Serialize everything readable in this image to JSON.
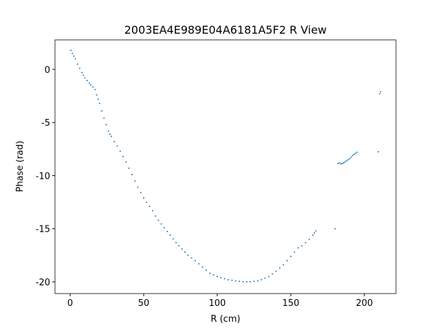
{
  "chart_data": {
    "type": "scatter",
    "title": "2003EA4E989E04A6181A5F2 R View",
    "xlabel": "R (cm)",
    "ylabel": "Phase (rad)",
    "color": "#1f77b4",
    "x": [
      0.5,
      1.5,
      2.5,
      3.5,
      5,
      6.5,
      8,
      9,
      10,
      11.5,
      13,
      14,
      15.5,
      17,
      18,
      19,
      20,
      21.5,
      23,
      24.5,
      26,
      27,
      28,
      30,
      32,
      34,
      36,
      38,
      40,
      42,
      44,
      46,
      48,
      50,
      52,
      54,
      56,
      58,
      60,
      62,
      64,
      66,
      68,
      70,
      72,
      74,
      76,
      78,
      80,
      82.5,
      85,
      87.5,
      90,
      92.5,
      95,
      97.5,
      100,
      102.5,
      105,
      107.5,
      110,
      112.5,
      115,
      117.5,
      120,
      122.5,
      125,
      127.5,
      130,
      132.5,
      135,
      137.5,
      140,
      142.5,
      145,
      147.5,
      150,
      152.5,
      155,
      157.5,
      160,
      162.5,
      165,
      166,
      167,
      180,
      182,
      183,
      184,
      185,
      186,
      187,
      188,
      189,
      190,
      191,
      192,
      193,
      194,
      195,
      209.5,
      210.5,
      211
    ],
    "values": [
      1.8,
      1.5,
      1.25,
      1.0,
      0.5,
      0.1,
      -0.3,
      -0.55,
      -0.8,
      -1.05,
      -1.3,
      -1.45,
      -1.65,
      -1.9,
      -2.4,
      -2.8,
      -3.2,
      -3.9,
      -4.6,
      -5.2,
      -5.8,
      -6.1,
      -6.3,
      -6.8,
      -7.2,
      -7.7,
      -8.2,
      -8.7,
      -9.3,
      -9.9,
      -10.5,
      -11.1,
      -11.6,
      -12.1,
      -12.5,
      -12.9,
      -13.3,
      -13.8,
      -14.2,
      -14.55,
      -14.9,
      -15.25,
      -15.6,
      -15.95,
      -16.3,
      -16.6,
      -16.9,
      -17.2,
      -17.5,
      -17.75,
      -18.0,
      -18.3,
      -18.6,
      -18.9,
      -19.2,
      -19.35,
      -19.5,
      -19.6,
      -19.7,
      -19.8,
      -19.85,
      -19.9,
      -19.95,
      -19.98,
      -20.0,
      -19.98,
      -19.95,
      -19.9,
      -19.8,
      -19.65,
      -19.5,
      -19.25,
      -19.0,
      -18.7,
      -18.4,
      -18.0,
      -17.6,
      -17.2,
      -16.8,
      -16.6,
      -16.3,
      -16.0,
      -15.6,
      -15.4,
      -15.2,
      -15.0,
      -8.85,
      -8.8,
      -8.9,
      -8.85,
      -8.8,
      -8.7,
      -8.6,
      -8.5,
      -8.4,
      -8.25,
      -8.1,
      -8.0,
      -7.9,
      -7.8,
      -7.75,
      -2.3,
      -2.1
    ],
    "xlim": [
      -10.3,
      221.5
    ],
    "ylim": [
      -21.1,
      2.78
    ],
    "xticks": [
      0,
      50,
      100,
      150,
      200
    ],
    "yticks": [
      0,
      -5,
      -10,
      -15,
      -20
    ]
  }
}
